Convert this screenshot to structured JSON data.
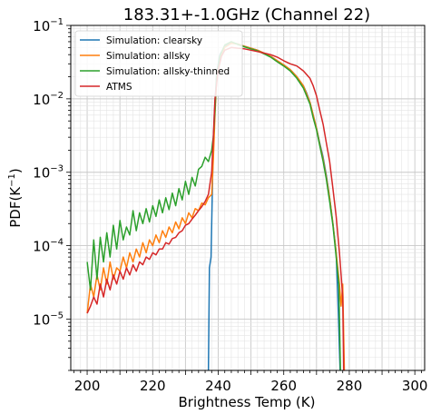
{
  "chart_data": {
    "type": "line",
    "title": "183.31+-1.0GHz (Channel 22)",
    "xlabel": "Brightness Temp (K)",
    "ylabel_main": "PDF(K",
    "ylabel_sup": "−1",
    "ylabel_end": ")",
    "xlim": [
      195,
      303
    ],
    "ylim": [
      2e-06,
      0.1
    ],
    "log_y": true,
    "grid": "major+minor",
    "legend_position": "top-left",
    "x_ticks": [
      200,
      220,
      240,
      260,
      280,
      300
    ],
    "y_ticks": [
      {
        "value": 1e-05,
        "base": "10",
        "exp": "−5"
      },
      {
        "value": 0.0001,
        "base": "10",
        "exp": "−4"
      },
      {
        "value": 0.001,
        "base": "10",
        "exp": "−3"
      },
      {
        "value": 0.01,
        "base": "10",
        "exp": "−2"
      },
      {
        "value": 0.1,
        "base": "10",
        "exp": "−1"
      }
    ],
    "series": [
      {
        "name": "Simulation: clearsky",
        "color": "#1f77b4",
        "points": [
          [
            237.0,
            2e-06
          ],
          [
            237.3,
            5e-05
          ],
          [
            237.8,
            7e-05
          ],
          [
            238.3,
            0.001
          ],
          [
            238.8,
            0.006
          ],
          [
            239.5,
            0.022
          ],
          [
            240.5,
            0.04
          ],
          [
            242,
            0.052
          ],
          [
            244,
            0.058
          ],
          [
            246,
            0.056
          ],
          [
            248,
            0.052
          ],
          [
            250,
            0.049
          ],
          [
            252,
            0.046
          ],
          [
            254,
            0.042
          ],
          [
            256,
            0.038
          ],
          [
            258,
            0.033
          ],
          [
            260,
            0.029
          ],
          [
            262,
            0.025
          ],
          [
            264,
            0.02
          ],
          [
            266,
            0.015
          ],
          [
            267,
            0.012
          ],
          [
            268,
            0.009
          ],
          [
            269,
            0.006
          ],
          [
            270,
            0.004
          ],
          [
            271,
            0.0025
          ],
          [
            272,
            0.0016
          ],
          [
            273,
            0.0009
          ],
          [
            274,
            0.00045
          ],
          [
            275,
            0.0002
          ],
          [
            276,
            8e-05
          ],
          [
            276.5,
            2e-05
          ],
          [
            277.2,
            2e-06
          ]
        ]
      },
      {
        "name": "Simulation: allsky",
        "color": "#ff7f0e",
        "points": [
          [
            200,
            1.2e-05
          ],
          [
            201,
            3e-05
          ],
          [
            202,
            2e-05
          ],
          [
            203,
            4e-05
          ],
          [
            204,
            2.5e-05
          ],
          [
            205,
            5e-05
          ],
          [
            206,
            3e-05
          ],
          [
            207,
            6e-05
          ],
          [
            208,
            3.5e-05
          ],
          [
            209,
            5e-05
          ],
          [
            210,
            4.5e-05
          ],
          [
            211,
            7e-05
          ],
          [
            212,
            5e-05
          ],
          [
            213,
            8e-05
          ],
          [
            214,
            6e-05
          ],
          [
            215,
            9e-05
          ],
          [
            216,
            7e-05
          ],
          [
            217,
            0.00011
          ],
          [
            218,
            8e-05
          ],
          [
            219,
            0.00012
          ],
          [
            220,
            0.0001
          ],
          [
            221,
            0.00014
          ],
          [
            222,
            0.00011
          ],
          [
            223,
            0.00016
          ],
          [
            224,
            0.00013
          ],
          [
            225,
            0.00018
          ],
          [
            226,
            0.00015
          ],
          [
            227,
            0.00021
          ],
          [
            228,
            0.00017
          ],
          [
            229,
            0.00024
          ],
          [
            230,
            0.0002
          ],
          [
            231,
            0.00028
          ],
          [
            232,
            0.00024
          ],
          [
            233,
            0.00032
          ],
          [
            234,
            0.0003
          ],
          [
            235,
            0.00038
          ],
          [
            236,
            0.00036
          ],
          [
            237,
            0.00045
          ],
          [
            238,
            0.0005
          ],
          [
            238.5,
            0.0015
          ],
          [
            239,
            0.006
          ],
          [
            239.5,
            0.018
          ],
          [
            240.5,
            0.035
          ],
          [
            242,
            0.05
          ],
          [
            244,
            0.057
          ],
          [
            246,
            0.056
          ],
          [
            248,
            0.052
          ],
          [
            250,
            0.049
          ],
          [
            252,
            0.046
          ],
          [
            254,
            0.042
          ],
          [
            256,
            0.038
          ],
          [
            258,
            0.033
          ],
          [
            260,
            0.029
          ],
          [
            262,
            0.025
          ],
          [
            264,
            0.02
          ],
          [
            266,
            0.015
          ],
          [
            268,
            0.009
          ],
          [
            269,
            0.006
          ],
          [
            270,
            0.004
          ],
          [
            271,
            0.0024
          ],
          [
            272,
            0.0015
          ],
          [
            273,
            0.00085
          ],
          [
            274,
            0.00045
          ],
          [
            275,
            0.0002
          ],
          [
            276,
            8e-05
          ],
          [
            277,
            3e-05
          ],
          [
            277.5,
            1.5e-05
          ],
          [
            278,
            3e-05
          ],
          [
            278.5,
            2e-06
          ]
        ]
      },
      {
        "name": "Simulation: allsky-thinned",
        "color": "#2ca02c",
        "points": [
          [
            200,
            6e-05
          ],
          [
            201,
            2.5e-05
          ],
          [
            202,
            0.00012
          ],
          [
            203,
            3.5e-05
          ],
          [
            204,
            0.00013
          ],
          [
            205,
            6e-05
          ],
          [
            206,
            0.00015
          ],
          [
            207,
            7e-05
          ],
          [
            208,
            0.00019
          ],
          [
            209,
            9e-05
          ],
          [
            210,
            0.00022
          ],
          [
            211,
            0.00012
          ],
          [
            212,
            0.00018
          ],
          [
            213,
            0.00014
          ],
          [
            214,
            0.0003
          ],
          [
            215,
            0.00016
          ],
          [
            216,
            0.00028
          ],
          [
            217,
            0.0002
          ],
          [
            218,
            0.00032
          ],
          [
            219,
            0.00021
          ],
          [
            220,
            0.00035
          ],
          [
            221,
            0.00025
          ],
          [
            222,
            0.00042
          ],
          [
            223,
            0.00028
          ],
          [
            224,
            0.00045
          ],
          [
            225,
            0.00031
          ],
          [
            226,
            0.00052
          ],
          [
            227,
            0.00035
          ],
          [
            228,
            0.0006
          ],
          [
            229,
            0.00042
          ],
          [
            230,
            0.00075
          ],
          [
            231,
            0.0005
          ],
          [
            232,
            0.00085
          ],
          [
            233,
            0.00065
          ],
          [
            234,
            0.0011
          ],
          [
            235,
            0.0012
          ],
          [
            236,
            0.0016
          ],
          [
            237,
            0.0014
          ],
          [
            238,
            0.002
          ],
          [
            238.5,
            0.003
          ],
          [
            239,
            0.007
          ],
          [
            239.5,
            0.02
          ],
          [
            240.5,
            0.038
          ],
          [
            242,
            0.054
          ],
          [
            244,
            0.06
          ],
          [
            246,
            0.055
          ],
          [
            248,
            0.051
          ],
          [
            250,
            0.048
          ],
          [
            252,
            0.045
          ],
          [
            254,
            0.041
          ],
          [
            256,
            0.037
          ],
          [
            258,
            0.032
          ],
          [
            260,
            0.028
          ],
          [
            262,
            0.024
          ],
          [
            264,
            0.019
          ],
          [
            266,
            0.014
          ],
          [
            268,
            0.0085
          ],
          [
            269,
            0.0055
          ],
          [
            270,
            0.0038
          ],
          [
            271,
            0.0023
          ],
          [
            272,
            0.0014
          ],
          [
            273,
            0.0008
          ],
          [
            274,
            0.0004
          ],
          [
            275,
            0.00019
          ],
          [
            276,
            7e-05
          ],
          [
            276.8,
            3e-05
          ],
          [
            277.3,
            2e-06
          ]
        ]
      },
      {
        "name": "ATMS",
        "color": "#d62728",
        "points": [
          [
            200,
            1.2e-05
          ],
          [
            201,
            1.5e-05
          ],
          [
            202,
            2e-05
          ],
          [
            203,
            1.6e-05
          ],
          [
            204,
            3e-05
          ],
          [
            205,
            2e-05
          ],
          [
            206,
            3.5e-05
          ],
          [
            207,
            2.5e-05
          ],
          [
            208,
            4e-05
          ],
          [
            209,
            3e-05
          ],
          [
            210,
            4.5e-05
          ],
          [
            211,
            3.5e-05
          ],
          [
            212,
            5e-05
          ],
          [
            213,
            4e-05
          ],
          [
            214,
            5.5e-05
          ],
          [
            215,
            4.5e-05
          ],
          [
            216,
            6e-05
          ],
          [
            217,
            5.5e-05
          ],
          [
            218,
            7e-05
          ],
          [
            219,
            6.5e-05
          ],
          [
            220,
            8e-05
          ],
          [
            221,
            7.5e-05
          ],
          [
            222,
            9e-05
          ],
          [
            223,
            9e-05
          ],
          [
            224,
            0.00011
          ],
          [
            225,
            0.000105
          ],
          [
            226,
            0.000125
          ],
          [
            227,
            0.00013
          ],
          [
            228,
            0.00015
          ],
          [
            229,
            0.00016
          ],
          [
            230,
            0.00019
          ],
          [
            231,
            0.0002
          ],
          [
            232,
            0.00023
          ],
          [
            233,
            0.00026
          ],
          [
            234,
            0.0003
          ],
          [
            235,
            0.00034
          ],
          [
            236,
            0.0004
          ],
          [
            237,
            0.0005
          ],
          [
            238,
            0.001
          ],
          [
            238.5,
            0.003
          ],
          [
            239,
            0.01
          ],
          [
            240,
            0.025
          ],
          [
            241,
            0.038
          ],
          [
            242,
            0.046
          ],
          [
            244,
            0.05
          ],
          [
            246,
            0.049
          ],
          [
            248,
            0.048
          ],
          [
            250,
            0.046
          ],
          [
            252,
            0.044
          ],
          [
            254,
            0.042
          ],
          [
            256,
            0.04
          ],
          [
            258,
            0.037
          ],
          [
            260,
            0.033
          ],
          [
            262,
            0.03
          ],
          [
            264,
            0.028
          ],
          [
            266,
            0.024
          ],
          [
            268,
            0.019
          ],
          [
            269,
            0.015
          ],
          [
            270,
            0.011
          ],
          [
            271,
            0.007
          ],
          [
            272,
            0.0045
          ],
          [
            273,
            0.0025
          ],
          [
            274,
            0.0014
          ],
          [
            275,
            0.0006
          ],
          [
            276,
            0.00025
          ],
          [
            277,
            8e-05
          ],
          [
            278,
            2e-05
          ],
          [
            278.3,
            2e-06
          ]
        ]
      }
    ]
  }
}
